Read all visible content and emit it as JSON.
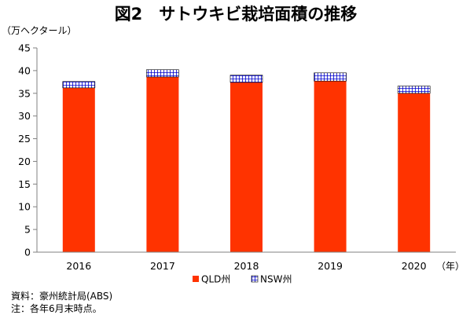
{
  "chart_data": {
    "type": "bar",
    "stacked": true,
    "title": "図2　サトウキビ栽培面積の推移",
    "y_unit_label": "（万ヘクタール）",
    "x_unit_label": "（年）",
    "categories": [
      "2016",
      "2017",
      "2018",
      "2019",
      "2020"
    ],
    "ylim": [
      0,
      45
    ],
    "y_ticks": [
      0,
      5,
      10,
      15,
      20,
      25,
      30,
      35,
      40,
      45
    ],
    "grid": false,
    "legend_placement": "bottom",
    "series": [
      {
        "name": "QLD州",
        "values": [
          36.2,
          38.6,
          37.4,
          37.7,
          35.0
        ],
        "color": "#ff3300",
        "pattern": "solid"
      },
      {
        "name": "NSW州",
        "values": [
          1.4,
          1.6,
          1.6,
          1.8,
          1.6
        ],
        "color": "#0000cc",
        "pattern": "grid"
      }
    ]
  },
  "notes": {
    "source": "資料：豪州統計局(ABS)",
    "note": "注：各年6月末時点。"
  }
}
